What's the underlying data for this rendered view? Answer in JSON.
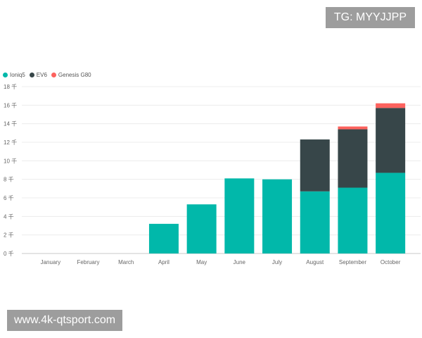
{
  "watermarks": {
    "top": "TG: MYYJJPP",
    "bottom": "www.4k-qtsport.com"
  },
  "colors": {
    "ioniq5": "#01b8aa",
    "ev6": "#374649",
    "g80": "#fd625e",
    "grid": "#ececec",
    "axis": "#c8c8c8"
  },
  "chart_data": {
    "type": "bar",
    "stacked": true,
    "categories": [
      "January",
      "February",
      "March",
      "April",
      "May",
      "June",
      "July",
      "August",
      "September",
      "October"
    ],
    "series": [
      {
        "name": "Ioniq5",
        "values": [
          0,
          0,
          0,
          3.2,
          5.3,
          8.1,
          8.0,
          6.7,
          7.1,
          8.7
        ]
      },
      {
        "name": "EV6",
        "values": [
          0,
          0,
          0,
          0,
          0,
          0,
          0,
          5.6,
          6.3,
          7.0
        ]
      },
      {
        "name": "Genesis G80",
        "values": [
          0,
          0,
          0,
          0,
          0,
          0,
          0,
          0,
          0.3,
          0.5
        ]
      }
    ],
    "yticks": [
      "0 千",
      "2 千",
      "4 千",
      "6 千",
      "8 千",
      "10 千",
      "12 千",
      "14 千",
      "16 千",
      "18 千"
    ],
    "ylim": [
      0,
      18
    ],
    "grid": true,
    "legend": "top-left"
  }
}
